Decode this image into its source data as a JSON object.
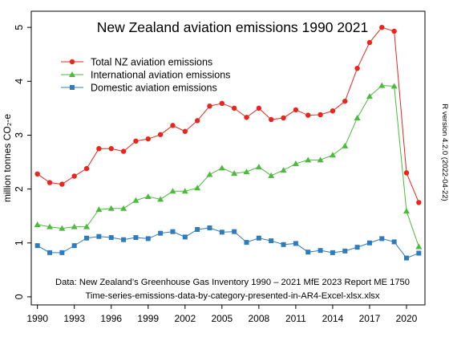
{
  "chart_data": {
    "type": "line",
    "title": "New Zealand aviation emissions 1990 2021",
    "ylabel": "million tonnes CO₂-e",
    "x": [
      1990,
      1991,
      1992,
      1993,
      1994,
      1995,
      1996,
      1997,
      1998,
      1999,
      2000,
      2001,
      2002,
      2003,
      2004,
      2005,
      2006,
      2007,
      2008,
      2009,
      2010,
      2011,
      2012,
      2013,
      2014,
      2015,
      2016,
      2017,
      2018,
      2019,
      2020,
      2021
    ],
    "x_ticks": [
      "1990",
      "1993",
      "1996",
      "1999",
      "2002",
      "2005",
      "2008",
      "2011",
      "2014",
      "2017",
      "2020"
    ],
    "y_ticks": [
      "0",
      "1",
      "2",
      "3",
      "4",
      "5"
    ],
    "xlim": [
      1989.5,
      2021.5
    ],
    "ylim": [
      -0.15,
      5.3
    ],
    "grid": false,
    "legend_position": "top-left",
    "series": [
      {
        "name": "Total NZ aviation emissions",
        "color": "#e8261e",
        "marker": "circle",
        "values": [
          2.28,
          2.12,
          2.09,
          2.24,
          2.38,
          2.75,
          2.75,
          2.7,
          2.89,
          2.93,
          3.01,
          3.18,
          3.07,
          3.27,
          3.54,
          3.59,
          3.5,
          3.33,
          3.5,
          3.29,
          3.32,
          3.47,
          3.37,
          3.38,
          3.45,
          3.63,
          4.24,
          4.72,
          5.0,
          4.93,
          2.3,
          1.75
        ]
      },
      {
        "name": "International aviation emissions",
        "color": "#4cba3c",
        "marker": "triangle",
        "values": [
          1.34,
          1.3,
          1.27,
          1.3,
          1.3,
          1.62,
          1.64,
          1.64,
          1.79,
          1.86,
          1.81,
          1.96,
          1.96,
          2.02,
          2.27,
          2.39,
          2.29,
          2.32,
          2.41,
          2.25,
          2.35,
          2.47,
          2.54,
          2.54,
          2.63,
          2.8,
          3.32,
          3.72,
          3.92,
          3.91,
          1.59,
          0.93
        ]
      },
      {
        "name": "Domestic aviation emissions",
        "color": "#2f7bbf",
        "marker": "square",
        "values": [
          0.95,
          0.82,
          0.82,
          0.95,
          1.09,
          1.12,
          1.1,
          1.06,
          1.1,
          1.08,
          1.18,
          1.21,
          1.11,
          1.25,
          1.28,
          1.2,
          1.21,
          1.01,
          1.09,
          1.04,
          0.97,
          0.99,
          0.83,
          0.86,
          0.82,
          0.85,
          0.92,
          1.0,
          1.08,
          1.02,
          0.72,
          0.81
        ]
      }
    ],
    "annotation_lines": [
      "Data: New Zealand’s Greenhouse Gas Inventory 1990 – 2021 MfE 2023 Report ME 1750",
      "Time-series-emissions-data-by-category-presented-in-AR4-Excel-xlsx.xlsx"
    ],
    "side_note": "R version 4.2.0 (2022-04-22)"
  }
}
